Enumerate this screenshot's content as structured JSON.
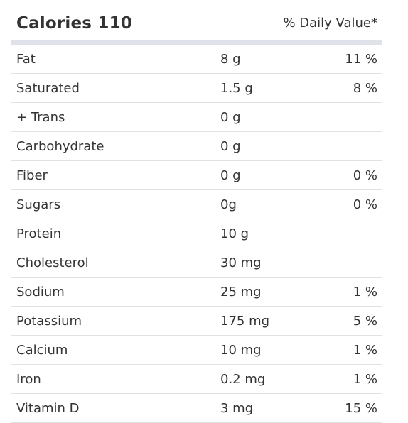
{
  "header": {
    "calories_label": "Calories 110",
    "daily_value_label": "% Daily Value*"
  },
  "rows": [
    {
      "name": "Fat",
      "amount": "8 g",
      "dv": "11 %"
    },
    {
      "name": "Saturated",
      "amount": "1.5 g",
      "dv": "8 %"
    },
    {
      "name": "+ Trans",
      "amount": "0 g",
      "dv": ""
    },
    {
      "name": "Carbohydrate",
      "amount": "0 g",
      "dv": ""
    },
    {
      "name": "Fiber",
      "amount": "0 g",
      "dv": "0 %"
    },
    {
      "name": "Sugars",
      "amount": "0g",
      "dv": "0 %"
    },
    {
      "name": "Protein",
      "amount": "10 g",
      "dv": ""
    },
    {
      "name": "Cholesterol",
      "amount": "30 mg",
      "dv": ""
    },
    {
      "name": "Sodium",
      "amount": "25 mg",
      "dv": "1 %"
    },
    {
      "name": "Potassium",
      "amount": "175 mg",
      "dv": "5 %"
    },
    {
      "name": "Calcium",
      "amount": "10 mg",
      "dv": "1 %"
    },
    {
      "name": "Iron",
      "amount": "0.2 mg",
      "dv": "1 %"
    },
    {
      "name": "Vitamin D",
      "amount": "3 mg",
      "dv": "15 %"
    }
  ]
}
